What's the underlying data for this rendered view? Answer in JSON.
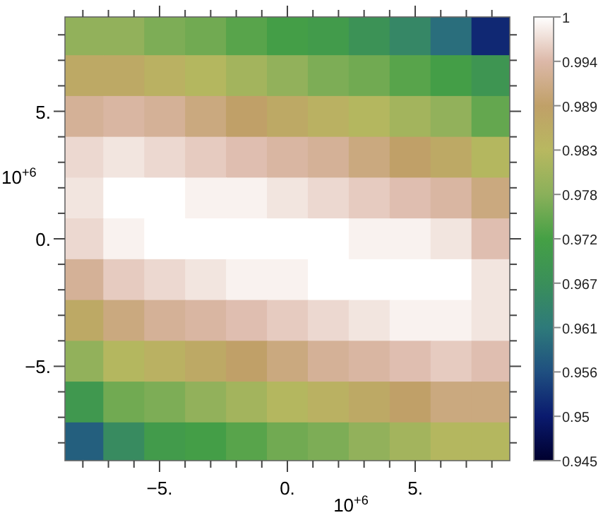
{
  "chart_data": {
    "type": "heatmap",
    "xlabel": "10$^{+6}$",
    "ylabel": "10$^{+6}$",
    "x": [
      -8,
      -6.4,
      -4.8,
      -3.2,
      -1.6,
      0,
      1.6,
      3.2,
      4.8,
      6.4,
      8
    ],
    "y": [
      8,
      6.4,
      4.8,
      3.2,
      1.6,
      0,
      -1.6,
      -3.2,
      -4.8,
      -6.4,
      -8
    ],
    "cells": [
      [
        0.979,
        0.979,
        0.977,
        0.976,
        0.974,
        0.972,
        0.971,
        0.968,
        0.965,
        0.96,
        0.952
      ],
      [
        0.987,
        0.987,
        0.985,
        0.983,
        0.981,
        0.979,
        0.977,
        0.976,
        0.974,
        0.972,
        0.969
      ],
      [
        0.993,
        0.994,
        0.993,
        0.991,
        0.989,
        0.987,
        0.985,
        0.983,
        0.981,
        0.979,
        0.975
      ],
      [
        0.997,
        0.998,
        0.997,
        0.996,
        0.995,
        0.994,
        0.993,
        0.991,
        0.989,
        0.987,
        0.983
      ],
      [
        0.998,
        1,
        1,
        0.999,
        0.999,
        0.998,
        0.997,
        0.996,
        0.995,
        0.994,
        0.991
      ],
      [
        0.997,
        0.999,
        1,
        1,
        1,
        1,
        1,
        0.999,
        0.999,
        0.998,
        0.995
      ],
      [
        0.993,
        0.996,
        0.997,
        0.998,
        0.999,
        0.999,
        1,
        1,
        1,
        1,
        0.998
      ],
      [
        0.987,
        0.991,
        0.993,
        0.994,
        0.995,
        0.996,
        0.997,
        0.998,
        0.999,
        0.999,
        0.998
      ],
      [
        0.979,
        0.983,
        0.985,
        0.987,
        0.989,
        0.991,
        0.993,
        0.994,
        0.995,
        0.996,
        0.995
      ],
      [
        0.97,
        0.976,
        0.977,
        0.979,
        0.981,
        0.983,
        0.985,
        0.987,
        0.989,
        0.991,
        0.991
      ],
      [
        0.958,
        0.966,
        0.971,
        0.972,
        0.974,
        0.976,
        0.977,
        0.979,
        0.981,
        0.983,
        0.983
      ]
    ],
    "xlim": [
      -8.7,
      8.7
    ],
    "ylim": [
      -8.7,
      8.7
    ],
    "xticks": [
      {
        "value": -8,
        "label": null
      },
      {
        "value": -7,
        "label": null
      },
      {
        "value": -6,
        "label": null
      },
      {
        "value": -5,
        "label": "−5."
      },
      {
        "value": -4,
        "label": null
      },
      {
        "value": -3,
        "label": null
      },
      {
        "value": -2,
        "label": null
      },
      {
        "value": -1,
        "label": null
      },
      {
        "value": 0,
        "label": "0."
      },
      {
        "value": 1,
        "label": null
      },
      {
        "value": 2,
        "label": null
      },
      {
        "value": 3,
        "label": null
      },
      {
        "value": 4,
        "label": null
      },
      {
        "value": 5,
        "label": "5."
      },
      {
        "value": 6,
        "label": null
      },
      {
        "value": 7,
        "label": null
      },
      {
        "value": 8,
        "label": null
      }
    ],
    "yticks": [
      {
        "value": -8,
        "label": null
      },
      {
        "value": -7,
        "label": null
      },
      {
        "value": -6,
        "label": null
      },
      {
        "value": -5,
        "label": "−5."
      },
      {
        "value": -4,
        "label": null
      },
      {
        "value": -3,
        "label": null
      },
      {
        "value": -2,
        "label": null
      },
      {
        "value": -1,
        "label": null
      },
      {
        "value": 0,
        "label": "0."
      },
      {
        "value": 1,
        "label": null
      },
      {
        "value": 2,
        "label": null
      },
      {
        "value": 3,
        "label": null
      },
      {
        "value": 4,
        "label": null
      },
      {
        "value": 5,
        "label": "5."
      },
      {
        "value": 6,
        "label": null
      },
      {
        "value": 7,
        "label": null
      },
      {
        "value": 8,
        "label": null
      }
    ],
    "clim": [
      0.945,
      1
    ],
    "cticks": [
      0.945,
      {
        "value": 0.9505,
        "label": "0.95"
      },
      0.956,
      {
        "value": 0.9615,
        "label": "0.961"
      },
      0.967,
      {
        "value": 0.9725,
        "label": "0.972"
      },
      0.978,
      {
        "value": 0.9835,
        "label": "0.983"
      },
      0.989,
      {
        "value": 0.9945,
        "label": "0.994"
      },
      1
    ]
  }
}
